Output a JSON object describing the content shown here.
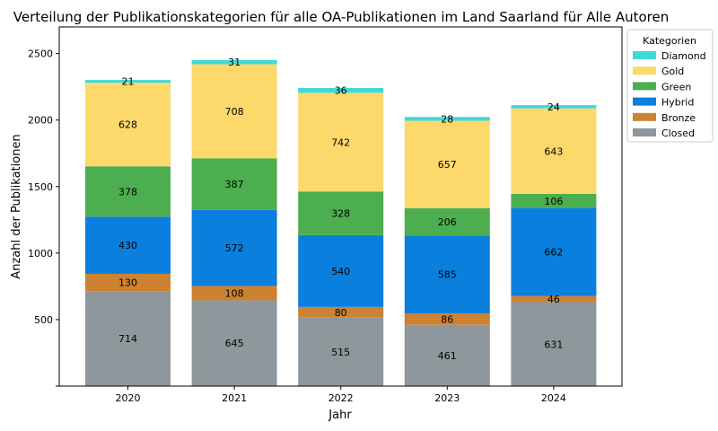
{
  "chart_data": {
    "type": "bar",
    "stacked": true,
    "title": "Verteilung der Publikationskategorien für alle OA-Publikationen im Land Saarland für Alle Autoren",
    "xlabel": "Jahr",
    "ylabel": "Anzahl der Publikationen",
    "categories": [
      "2020",
      "2021",
      "2022",
      "2023",
      "2024"
    ],
    "ylim": [
      0,
      2700
    ],
    "yticks": [
      500,
      1000,
      1500,
      2000,
      2500
    ],
    "legend": {
      "title": "Kategorien",
      "placement": "upper-right-outside"
    },
    "series": [
      {
        "name": "Closed",
        "color": "#8E979B",
        "values": [
          714,
          645,
          515,
          461,
          631
        ]
      },
      {
        "name": "Bronze",
        "color": "#CD8232",
        "values": [
          130,
          108,
          80,
          86,
          46
        ]
      },
      {
        "name": "Hybrid",
        "color": "#0A7FDD",
        "values": [
          430,
          572,
          540,
          585,
          662
        ]
      },
      {
        "name": "Green",
        "color": "#4CAE4F",
        "values": [
          378,
          387,
          328,
          206,
          106
        ]
      },
      {
        "name": "Gold",
        "color": "#FDD96B",
        "values": [
          628,
          708,
          742,
          657,
          643
        ]
      },
      {
        "name": "Diamond",
        "color": "#3ED9D9",
        "values": [
          21,
          31,
          36,
          28,
          24
        ]
      }
    ],
    "legend_order": [
      "Diamond",
      "Gold",
      "Green",
      "Hybrid",
      "Bronze",
      "Closed"
    ]
  }
}
